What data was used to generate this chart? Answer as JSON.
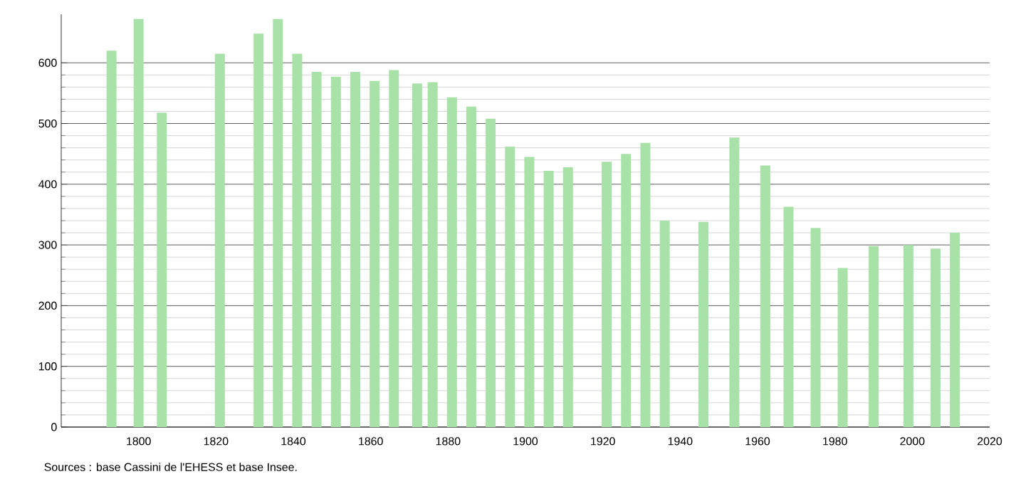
{
  "chart_data": {
    "type": "bar",
    "x": [
      1793,
      1800,
      1806,
      1821,
      1831,
      1836,
      1841,
      1846,
      1851,
      1856,
      1861,
      1866,
      1872,
      1876,
      1881,
      1886,
      1891,
      1896,
      1901,
      1906,
      1911,
      1921,
      1926,
      1931,
      1936,
      1946,
      1954,
      1962,
      1968,
      1975,
      1982,
      1990,
      1999,
      2006,
      2011
    ],
    "values": [
      620,
      672,
      518,
      615,
      648,
      672,
      615,
      585,
      577,
      585,
      570,
      588,
      566,
      568,
      543,
      528,
      508,
      462,
      445,
      422,
      428,
      437,
      450,
      468,
      340,
      338,
      477,
      431,
      363,
      328,
      262,
      298,
      300,
      294,
      320
    ],
    "color": "#a8e2a8",
    "xlim": [
      1780,
      2020
    ],
    "xticks": [
      1800,
      1820,
      1840,
      1860,
      1880,
      1900,
      1920,
      1940,
      1960,
      1980,
      2000,
      2020
    ],
    "ylim": [
      0,
      680
    ],
    "yticks": [
      0,
      100,
      200,
      300,
      400,
      500,
      600
    ],
    "grid": "y",
    "annotations": [
      "Sources : base Cassini de l'EHESS et base Insee."
    ]
  }
}
